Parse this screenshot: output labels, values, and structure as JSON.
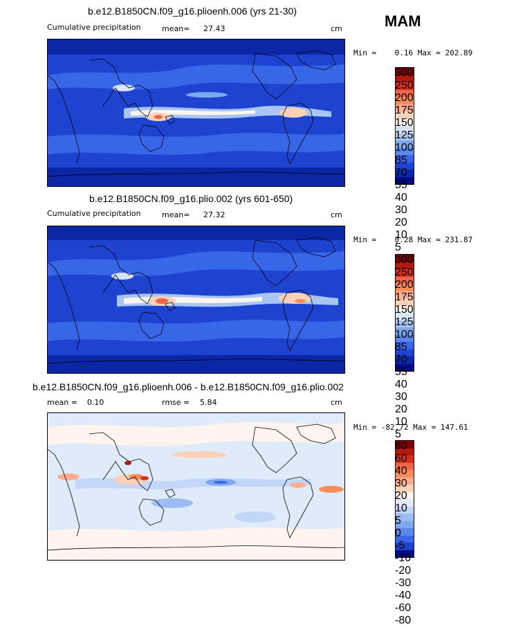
{
  "season": "MAM",
  "panels": [
    {
      "title": "b.e12.B1850CN.f09_g16.plioenh.006 (yrs 21-30)",
      "left_label": "Cumulative precipitation",
      "stats_label": "mean=",
      "stats_value": "27.43",
      "units": "cm",
      "minmax": "Min =    0.16 Max = 202.89",
      "colorbar_labels": [
        "300",
        "250",
        "200",
        "175",
        "150",
        "125",
        "100",
        "85",
        "70",
        "55",
        "40",
        "30",
        "20",
        "10",
        "5"
      ],
      "colors": [
        "#7f0000",
        "#b5180d",
        "#d7301f",
        "#ef6548",
        "#fc8d59",
        "#fdae90",
        "#fdd0b8",
        "#fff5ee",
        "#d6e4f9",
        "#a9c6f2",
        "#7ea8ee",
        "#5a88ec",
        "#3766e6",
        "#1f43d1",
        "#0c27a6",
        "#000a82"
      ]
    },
    {
      "title": "b.e12.B1850CN.f09_g16.plio.002 (yrs 601-650)",
      "left_label": "Cumulative precipitation",
      "stats_label": "mean=",
      "stats_value": "27.32",
      "units": "cm",
      "minmax": "Min =    0.28 Max = 231.87",
      "colorbar_labels": [
        "300",
        "250",
        "200",
        "175",
        "150",
        "125",
        "100",
        "85",
        "70",
        "55",
        "40",
        "30",
        "20",
        "10",
        "5"
      ],
      "colors": [
        "#7f0000",
        "#b5180d",
        "#d7301f",
        "#ef6548",
        "#fc8d59",
        "#fdae90",
        "#fdd0b8",
        "#fff5ee",
        "#d6e4f9",
        "#a9c6f2",
        "#7ea8ee",
        "#5a88ec",
        "#3766e6",
        "#1f43d1",
        "#0c27a6",
        "#000a82"
      ]
    },
    {
      "title": "b.e12.B1850CN.f09_g16.plioenh.006 - b.e12.B1850CN.f09_g16.plio.002",
      "left_label": "mean =    0.10",
      "stats_label": "rmse =",
      "stats_value": "5.84",
      "units": "cm",
      "minmax": "Min = -82.72 Max = 147.61",
      "colorbar_labels": [
        "80",
        "60",
        "40",
        "30",
        "20",
        "10",
        "5",
        "0",
        "-5",
        "-10",
        "-20",
        "-30",
        "-40",
        "-60",
        "-80"
      ],
      "colors": [
        "#7f0000",
        "#b5180d",
        "#d7301f",
        "#ef6548",
        "#fc8d59",
        "#fdae90",
        "#fdd0b8",
        "#fff5ee",
        "#dfeafa",
        "#c2d6f7",
        "#9cbcf3",
        "#7ea8ee",
        "#5a88ec",
        "#3766e6",
        "#1f43d1",
        "#000a82"
      ]
    }
  ]
}
